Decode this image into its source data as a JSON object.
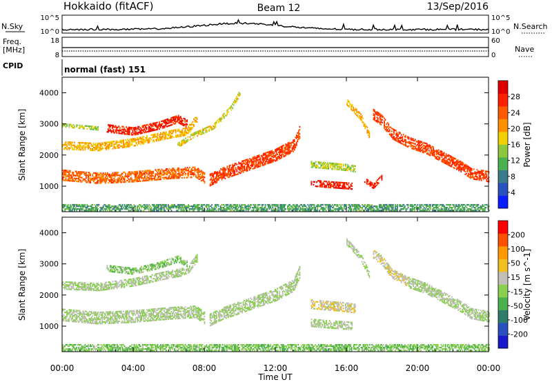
{
  "header": {
    "station": "Hokkaido (fitACF)",
    "beam": "Beam 12",
    "date": "13/Sep/2016"
  },
  "top_panels": {
    "nsky_label": "N.Sky",
    "nsky_ticks": [
      "10^5",
      "10^0"
    ],
    "nsearch_label": "N.Search",
    "nsearch_ticks": [
      "10^5",
      "10^0"
    ],
    "freq_label": "Freq.",
    "freq_unit": "[MHz]",
    "freq_ticks": [
      "18",
      "8"
    ],
    "nave_label": "Nave",
    "nave_ticks": [
      "60",
      "0"
    ],
    "cpid_label": "CPID",
    "cpid_value": "normal (fast) 151"
  },
  "colors": {
    "power_scale": [
      "#0a1eff",
      "#2a52be",
      "#3a7a8a",
      "#4caf50",
      "#8dc63f",
      "#f0d000",
      "#ff9000",
      "#ff5a00",
      "#ff2000",
      "#e00000"
    ],
    "velocity_scale": [
      "#1a1acc",
      "#2a50c0",
      "#2e7d6a",
      "#4caf50",
      "#8ad050",
      "#c0c0b8",
      "#f0c020",
      "#ff9a00",
      "#ff5000",
      "#ff0000"
    ]
  },
  "chart_data": [
    {
      "type": "heatmap",
      "title": "Power",
      "xlabel": "Time UT",
      "ylabel": "Slant Range [km]",
      "x_ticks": [
        "00:00",
        "04:00",
        "08:00",
        "12:00",
        "16:00",
        "20:00",
        "00:00"
      ],
      "x_range_hours": [
        0,
        24
      ],
      "y_ticks": [
        "4000",
        "3000",
        "2000",
        "1000"
      ],
      "y_range_km": [
        180,
        4500
      ],
      "colorbar_label": "Power [dB]",
      "colorbar_ticks": [
        "28",
        "24",
        "20",
        "16",
        "12",
        "8",
        "4"
      ],
      "colorbar_range": [
        0,
        30
      ],
      "bands": [
        {
          "points": [
            [
              0,
              1350
            ],
            [
              1,
              1300
            ],
            [
              2,
              1250
            ],
            [
              4,
              1300
            ],
            [
              6,
              1400
            ],
            [
              7.5,
              1450
            ],
            [
              8,
              1250
            ]
          ],
          "width": 350,
          "value": 22
        },
        {
          "points": [
            [
              8.3,
              1200
            ],
            [
              9,
              1400
            ],
            [
              10,
              1600
            ],
            [
              11,
              1800
            ],
            [
              12,
              2000
            ],
            [
              13,
              2300
            ],
            [
              13.4,
              2800
            ]
          ],
          "width": 400,
          "value": 24
        },
        {
          "points": [
            [
              0,
              2300
            ],
            [
              2,
              2250
            ],
            [
              4,
              2400
            ],
            [
              6,
              2650
            ],
            [
              7,
              2750
            ],
            [
              7.6,
              3200
            ]
          ],
          "width": 250,
          "value": 18
        },
        {
          "points": [
            [
              2.5,
              2850
            ],
            [
              4,
              2750
            ],
            [
              5.5,
              2950
            ],
            [
              6.5,
              3150
            ],
            [
              7,
              3000
            ]
          ],
          "width": 250,
          "value": 26
        },
        {
          "points": [
            [
              0,
              2950
            ],
            [
              1,
              2900
            ],
            [
              2,
              2850
            ]
          ],
          "width": 120,
          "value": 14
        },
        {
          "points": [
            [
              6.5,
              2300
            ],
            [
              7.3,
              2600
            ],
            [
              8.5,
              2900
            ],
            [
              9.5,
              3500
            ],
            [
              10,
              4000
            ]
          ],
          "width": 150,
          "value": 16
        },
        {
          "points": [
            [
              14,
              1700
            ],
            [
              15,
              1650
            ],
            [
              16,
              1600
            ],
            [
              16.5,
              1550
            ]
          ],
          "width": 220,
          "value": 14
        },
        {
          "points": [
            [
              14,
              1100
            ],
            [
              15,
              1050
            ],
            [
              16.3,
              1000
            ]
          ],
          "width": 220,
          "value": 26
        },
        {
          "points": [
            [
              17,
              1200
            ],
            [
              17.5,
              1000
            ],
            [
              18,
              1300
            ]
          ],
          "width": 180,
          "value": 26
        },
        {
          "points": [
            [
              17.5,
              3300
            ],
            [
              18,
              3100
            ],
            [
              18.5,
              2700
            ],
            [
              19.5,
              2400
            ],
            [
              20.5,
              2200
            ],
            [
              21.5,
              1900
            ],
            [
              22.5,
              1600
            ],
            [
              23,
              1400
            ],
            [
              24,
              1300
            ]
          ],
          "width": 350,
          "value": 24
        },
        {
          "points": [
            [
              16,
              3700
            ],
            [
              16.8,
              3200
            ],
            [
              17.3,
              2600
            ]
          ],
          "width": 200,
          "value": 18
        },
        {
          "points": [
            [
              0,
              300
            ],
            [
              12,
              300
            ],
            [
              24,
              300
            ]
          ],
          "width": 200,
          "value": 10
        }
      ]
    },
    {
      "type": "heatmap",
      "title": "Velocity",
      "xlabel": "Time UT",
      "ylabel": "Slant Range [km]",
      "x_ticks": [
        "00:00",
        "04:00",
        "08:00",
        "12:00",
        "16:00",
        "20:00",
        "00:00"
      ],
      "x_range_hours": [
        0,
        24
      ],
      "y_ticks": [
        "4000",
        "3000",
        "2000",
        "1000"
      ],
      "y_range_km": [
        180,
        4500
      ],
      "colorbar_label": "Velocity [m s^-1]",
      "colorbar_ticks": [
        "200",
        "100",
        "50",
        "15",
        "-15",
        "-50",
        "-100",
        "-200"
      ],
      "colorbar_range": [
        -250,
        250
      ],
      "bands": [
        {
          "points": [
            [
              0,
              1350
            ],
            [
              1,
              1300
            ],
            [
              2,
              1250
            ],
            [
              4,
              1300
            ],
            [
              6,
              1400
            ],
            [
              7.5,
              1450
            ],
            [
              8,
              1250
            ]
          ],
          "width": 380,
          "value": 0
        },
        {
          "points": [
            [
              8.3,
              1200
            ],
            [
              9,
              1400
            ],
            [
              10,
              1600
            ],
            [
              11,
              1800
            ],
            [
              12,
              2000
            ],
            [
              13,
              2300
            ],
            [
              13.4,
              2800
            ]
          ],
          "width": 400,
          "value": 0
        },
        {
          "points": [
            [
              0,
              2300
            ],
            [
              2,
              2250
            ],
            [
              4,
              2400
            ],
            [
              6,
              2650
            ],
            [
              7,
              2750
            ],
            [
              7.6,
              3200
            ]
          ],
          "width": 250,
          "value": 0
        },
        {
          "points": [
            [
              2.5,
              2850
            ],
            [
              4,
              2750
            ],
            [
              5.5,
              2950
            ],
            [
              6.5,
              3150
            ],
            [
              7,
              3000
            ]
          ],
          "width": 200,
          "value": -30
        },
        {
          "points": [
            [
              14,
              1700
            ],
            [
              15,
              1650
            ],
            [
              16,
              1600
            ],
            [
              16.5,
              1550
            ]
          ],
          "width": 300,
          "value": 40
        },
        {
          "points": [
            [
              14,
              1100
            ],
            [
              15,
              1050
            ],
            [
              16.3,
              1000
            ]
          ],
          "width": 250,
          "value": 0
        },
        {
          "points": [
            [
              17.5,
              3300
            ],
            [
              18,
              3100
            ],
            [
              18.5,
              2700
            ],
            [
              19.5,
              2400
            ]
          ],
          "width": 300,
          "value": 40
        },
        {
          "points": [
            [
              19.5,
              2400
            ],
            [
              20.5,
              2200
            ],
            [
              21.5,
              1900
            ],
            [
              22.5,
              1600
            ],
            [
              23,
              1400
            ],
            [
              24,
              1300
            ]
          ],
          "width": 350,
          "value": 0
        },
        {
          "points": [
            [
              16,
              3700
            ],
            [
              16.8,
              3200
            ],
            [
              17.3,
              2600
            ]
          ],
          "width": 200,
          "value": 0
        },
        {
          "points": [
            [
              0,
              300
            ],
            [
              12,
              300
            ],
            [
              24,
              300
            ]
          ],
          "width": 200,
          "value": -40
        }
      ]
    }
  ]
}
